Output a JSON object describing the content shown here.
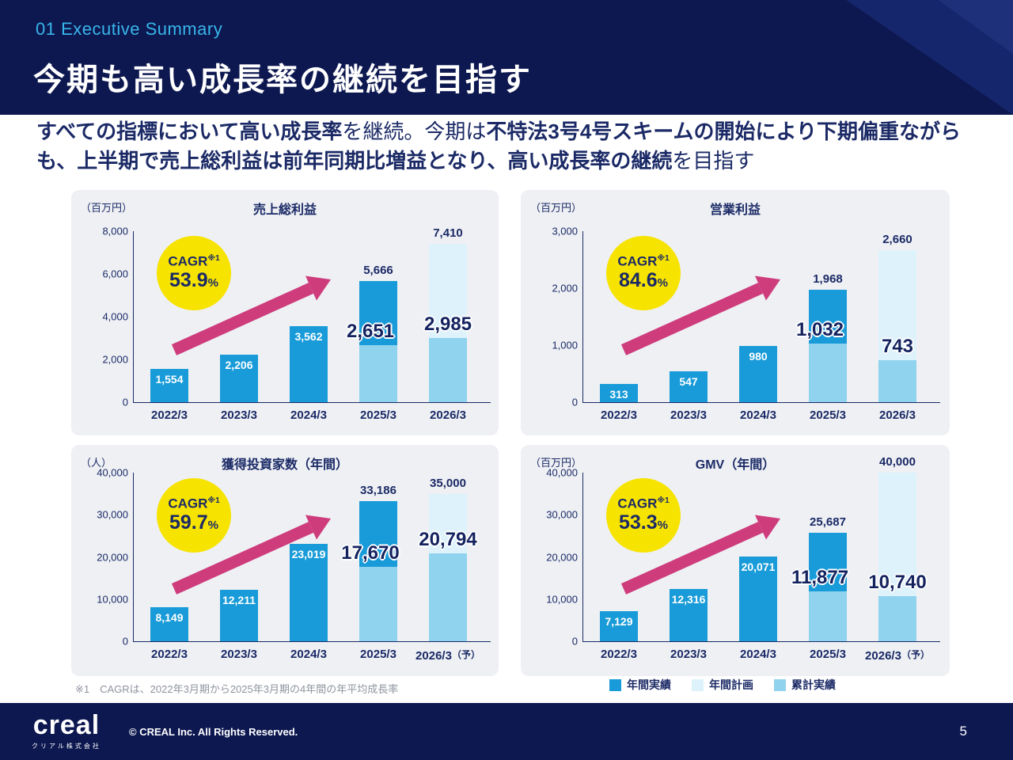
{
  "header": {
    "eyebrow": "01 Executive Summary",
    "title": "今期も高い成長率の継続を目指す"
  },
  "lead": {
    "segments": [
      {
        "text": "すべての指標において高い成長率",
        "bold": true
      },
      {
        "text": "を継続。今期は",
        "bold": false
      },
      {
        "text": "不特法3号4号スキームの開始により下期偏重ながらも、上半期で売上総利益は前年同期比増益となり、高い成長率の継続",
        "bold": true
      },
      {
        "text": "を目指す",
        "bold": false
      }
    ]
  },
  "chart_data": [
    {
      "type": "bar",
      "title": "売上総利益",
      "unit": "（百万円）",
      "cagr": {
        "label": "CAGR",
        "note": "※1",
        "value": "53.9",
        "pct": "%"
      },
      "ymax": 8000,
      "y_ticks": [
        "8,000",
        "6,000",
        "4,000",
        "2,000",
        "0"
      ],
      "categories": [
        "2022/3",
        "2023/3",
        "2024/3",
        "2025/3",
        "2026/3"
      ],
      "forecast_suffix": "",
      "series": [
        {
          "name": "年間実績",
          "values": [
            1554,
            2206,
            3562,
            5666,
            null
          ]
        },
        {
          "name": "年間計画",
          "values": [
            null,
            null,
            null,
            null,
            7410
          ]
        },
        {
          "name": "累計実績",
          "values": [
            null,
            null,
            null,
            2651,
            2985
          ]
        }
      ],
      "labels": {
        "annual": [
          "1,554",
          "2,206",
          "3,562",
          "5,666"
        ],
        "plan": "7,410",
        "cumulative": [
          "2,651",
          "2,985"
        ]
      }
    },
    {
      "type": "bar",
      "title": "営業利益",
      "unit": "（百万円）",
      "cagr": {
        "label": "CAGR",
        "note": "※1",
        "value": "84.6",
        "pct": "%"
      },
      "ymax": 3000,
      "y_ticks": [
        "3,000",
        "2,000",
        "1,000",
        "0"
      ],
      "categories": [
        "2022/3",
        "2023/3",
        "2024/3",
        "2025/3",
        "2026/3"
      ],
      "forecast_suffix": "",
      "series": [
        {
          "name": "年間実績",
          "values": [
            313,
            547,
            980,
            1968,
            null
          ]
        },
        {
          "name": "年間計画",
          "values": [
            null,
            null,
            null,
            null,
            2660
          ]
        },
        {
          "name": "累計実績",
          "values": [
            null,
            null,
            null,
            1032,
            743
          ]
        }
      ],
      "labels": {
        "annual": [
          "313",
          "547",
          "980",
          "1,968"
        ],
        "plan": "2,660",
        "cumulative": [
          "1,032",
          "743"
        ]
      }
    },
    {
      "type": "bar",
      "title": "獲得投資家数（年間）",
      "unit": "（人）",
      "cagr": {
        "label": "CAGR",
        "note": "※1",
        "value": "59.7",
        "pct": "%"
      },
      "ymax": 40000,
      "y_ticks": [
        "40,000",
        "30,000",
        "20,000",
        "10,000",
        "0"
      ],
      "categories": [
        "2022/3",
        "2023/3",
        "2024/3",
        "2025/3",
        "2026/3"
      ],
      "forecast_suffix": "（予）",
      "series": [
        {
          "name": "年間実績",
          "values": [
            8149,
            12211,
            23019,
            33186,
            null
          ]
        },
        {
          "name": "年間計画",
          "values": [
            null,
            null,
            null,
            null,
            35000
          ]
        },
        {
          "name": "累計実績",
          "values": [
            null,
            null,
            null,
            17670,
            20794
          ]
        }
      ],
      "labels": {
        "annual": [
          "8,149",
          "12,211",
          "23,019",
          "33,186"
        ],
        "plan": "35,000",
        "cumulative": [
          "17,670",
          "20,794"
        ]
      }
    },
    {
      "type": "bar",
      "title": "GMV（年間）",
      "unit": "（百万円）",
      "cagr": {
        "label": "CAGR",
        "note": "※1",
        "value": "53.3",
        "pct": "%"
      },
      "ymax": 40000,
      "y_ticks": [
        "40,000",
        "30,000",
        "20,000",
        "10,000",
        "0"
      ],
      "categories": [
        "2022/3",
        "2023/3",
        "2024/3",
        "2025/3",
        "2026/3"
      ],
      "forecast_suffix": "（予）",
      "series": [
        {
          "name": "年間実績",
          "values": [
            7129,
            12316,
            20071,
            25687,
            null
          ]
        },
        {
          "name": "年間計画",
          "values": [
            null,
            null,
            null,
            null,
            40000
          ]
        },
        {
          "name": "累計実績",
          "values": [
            null,
            null,
            null,
            11877,
            10740
          ]
        }
      ],
      "labels": {
        "annual": [
          "7,129",
          "12,316",
          "20,071",
          "25,687"
        ],
        "plan": "40,000",
        "cumulative": [
          "11,877",
          "10,740"
        ]
      }
    }
  ],
  "footnote": "※1　CAGRは、2022年3月期から2025年3月期の4年間の年平均成長率",
  "legend": [
    {
      "label": "年間実績",
      "color": "#189bd8"
    },
    {
      "label": "年間計画",
      "color": "#def2fb"
    },
    {
      "label": "累計実績",
      "color": "#8fd3ef"
    }
  ],
  "footer": {
    "logo": "creal",
    "logo_sub": "クリアル株式会社",
    "copyright": "© CREAL Inc. All Rights Reserved.",
    "page": "5"
  },
  "colors": {
    "annual": "#189bd8",
    "plan": "#def2fb",
    "cumulative": "#8fd3ef",
    "arrow_pink": "#ce3c7c",
    "cagr_yellow": "#f7e300",
    "navy": "#1b2a66"
  }
}
